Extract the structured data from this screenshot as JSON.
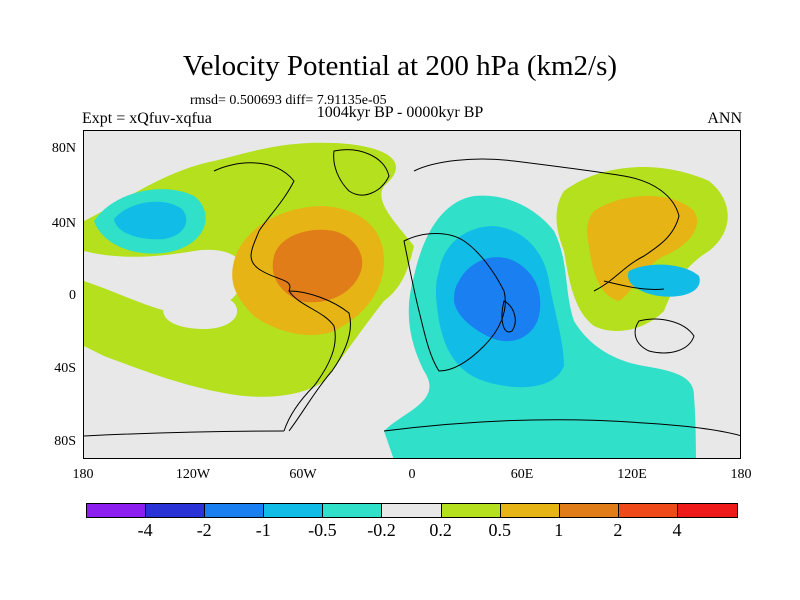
{
  "title": "Velocity Potential at 200 hPa (km2/s)",
  "stats": "rmsd= 0.500693 diff= 7.91135e-05",
  "expt": "Expt = xQfuv-xqfua",
  "period": "1004kyr BP - 0000kyr BP",
  "season": "ANN",
  "map": {
    "lat_ticks": [
      "80N",
      "40N",
      "0",
      "40S",
      "80S"
    ],
    "lon_ticks": [
      "180",
      "120W",
      "60W",
      "0",
      "60E",
      "120E",
      "180"
    ]
  },
  "colorbar": {
    "labels": [
      "-4",
      "-2",
      "-1",
      "-0.5",
      "-0.2",
      "0.2",
      "0.5",
      "1",
      "2",
      "4"
    ],
    "colors": [
      "#8c1ef0",
      "#2a33d6",
      "#1a7ff0",
      "#11bde6",
      "#30e0c8",
      "#e8e8e8",
      "#b4e01e",
      "#e6b414",
      "#e07d18",
      "#ee4a1a",
      "#ee1a1a"
    ]
  },
  "colors": {
    "neutral": "#e8e8e8",
    "pos1": "#b4e01e",
    "pos2": "#e6b414",
    "pos3": "#e07d18",
    "neg1": "#30e0c8",
    "neg2": "#11bde6",
    "neg3": "#1a7ff0"
  }
}
